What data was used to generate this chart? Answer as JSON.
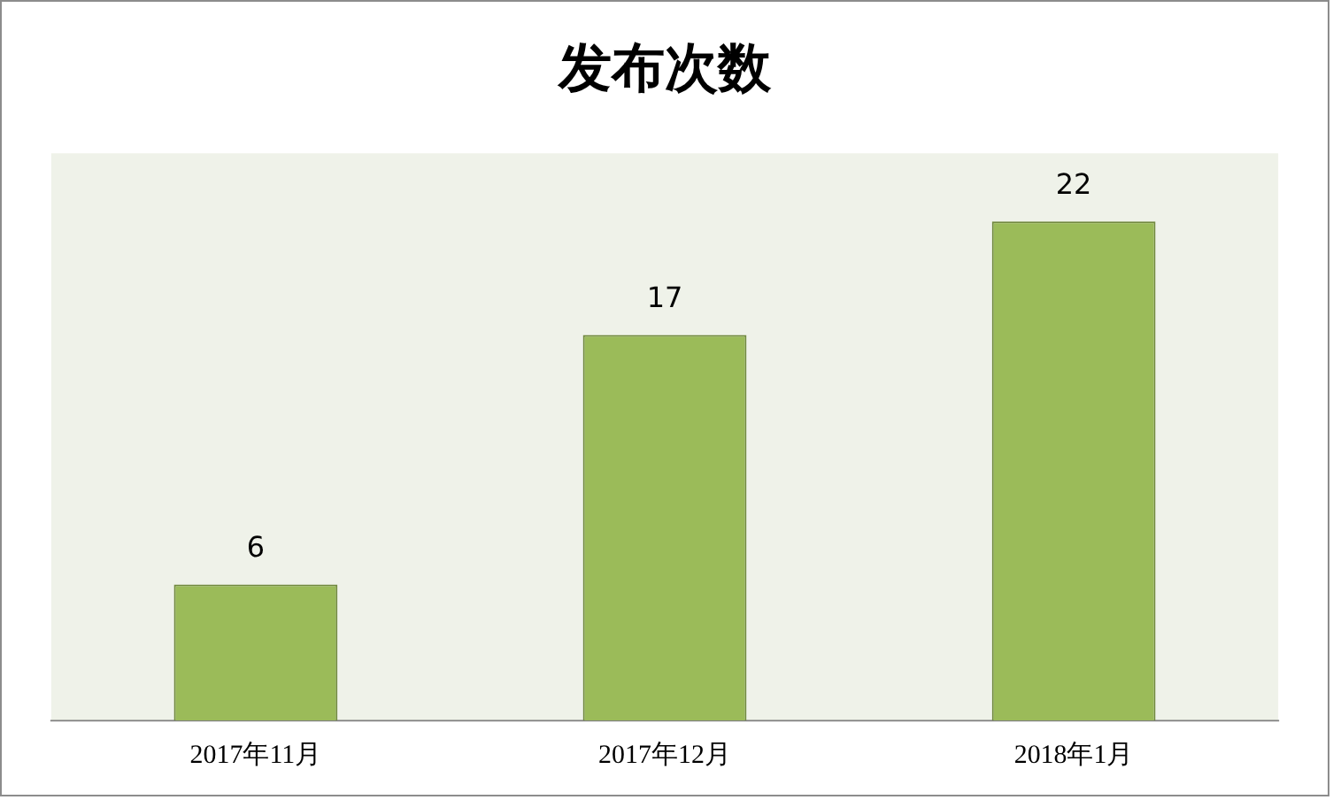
{
  "chart_data": {
    "type": "bar",
    "title": "发布次数",
    "categories": [
      "2017年11月",
      "2017年12月",
      "2018年1月"
    ],
    "values": [
      6,
      17,
      22
    ],
    "color": "#9bbb59",
    "ylim": [
      0,
      25
    ],
    "data_labels": true
  }
}
